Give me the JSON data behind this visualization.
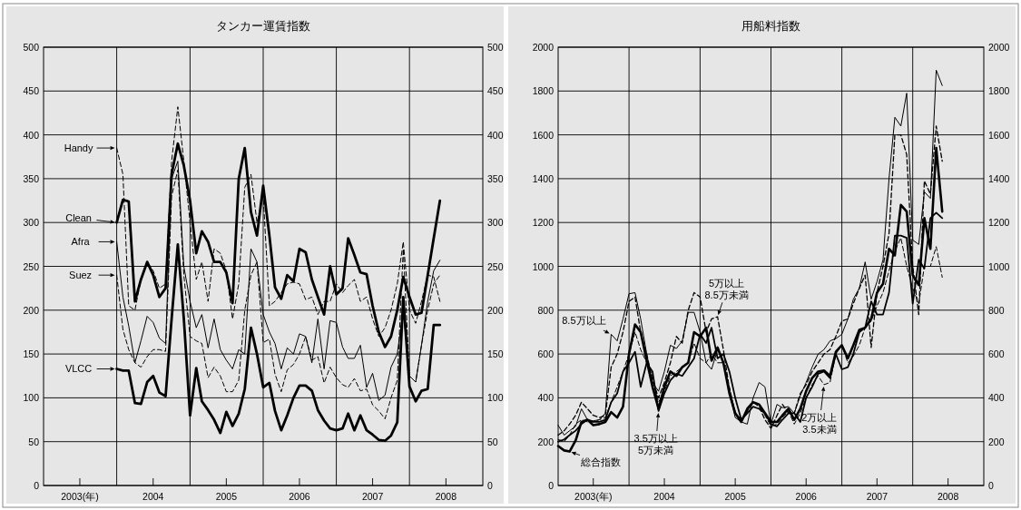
{
  "chart_data": [
    {
      "type": "line",
      "title": "タンカー運賃指数",
      "x": [
        "2004-01",
        "2004-02",
        "2004-03",
        "2004-04",
        "2004-05",
        "2004-06",
        "2004-07",
        "2004-08",
        "2004-09",
        "2004-10",
        "2004-11",
        "2004-12",
        "2005-01",
        "2005-02",
        "2005-03",
        "2005-04",
        "2005-05",
        "2005-06",
        "2005-07",
        "2005-08",
        "2005-09",
        "2005-10",
        "2005-11",
        "2005-12",
        "2006-01",
        "2006-02",
        "2006-03",
        "2006-04",
        "2006-05",
        "2006-06",
        "2006-07",
        "2006-08",
        "2006-09",
        "2006-10",
        "2006-11",
        "2006-12",
        "2007-01",
        "2007-02",
        "2007-03",
        "2007-04",
        "2007-05",
        "2007-06",
        "2007-07",
        "2007-08",
        "2007-09",
        "2007-10",
        "2007-11",
        "2007-12",
        "2008-01",
        "2008-02",
        "2008-03",
        "2008-04",
        "2008-05",
        "2008-06"
      ],
      "xlim": [
        "2003-01",
        "2009-01"
      ],
      "xticks": [
        {
          "value": "2003-07",
          "label": "2003(年)"
        },
        {
          "value": "2004-01",
          "label": null
        },
        {
          "value": "2004-07",
          "label": "2004"
        },
        {
          "value": "2005-01",
          "label": null
        },
        {
          "value": "2005-07",
          "label": "2005"
        },
        {
          "value": "2006-01",
          "label": null
        },
        {
          "value": "2006-07",
          "label": "2006"
        },
        {
          "value": "2007-01",
          "label": null
        },
        {
          "value": "2007-07",
          "label": "2007"
        },
        {
          "value": "2008-01",
          "label": null
        },
        {
          "value": "2008-07",
          "label": "2008"
        }
      ],
      "ylim": [
        0,
        500
      ],
      "yticks": [
        0,
        50,
        100,
        150,
        200,
        250,
        300,
        350,
        400,
        450,
        500
      ],
      "y2lim": [
        0,
        500
      ],
      "y2ticks": [
        0,
        50,
        100,
        150,
        200,
        250,
        300,
        350,
        400,
        450,
        500
      ],
      "grid": true,
      "series": [
        {
          "color": "#000000",
          "line_style": "dashed",
          "values": [
            385,
            355,
            205,
            200,
            235,
            255,
            245,
            225,
            230,
            370,
            432,
            370,
            300,
            235,
            255,
            210,
            270,
            265,
            245,
            190,
            230,
            340,
            355,
            300,
            330,
            205,
            210,
            220,
            230,
            232,
            230,
            212,
            215,
            195,
            210,
            210,
            230,
            220,
            228,
            235,
            210,
            215,
            190,
            170,
            180,
            200,
            230,
            278,
            200,
            185,
            210,
            240,
            238,
            210
          ]
        },
        {
          "color": "#000000",
          "line_style": "solid",
          "values": [
            300,
            326,
            324,
            210,
            235,
            255,
            240,
            215,
            225,
            355,
            390,
            365,
            325,
            265,
            290,
            278,
            255,
            255,
            243,
            208,
            350,
            385,
            312,
            285,
            342,
            285,
            226,
            213,
            240,
            233,
            270,
            266,
            235,
            215,
            195,
            250,
            218,
            225,
            282,
            263,
            243,
            241,
            205,
            175,
            158,
            170,
            200,
            238,
            215,
            195,
            197,
            240,
            282,
            325
          ]
        },
        {
          "color": "#000000",
          "line_style": "solid",
          "values": [
            278,
            215,
            182,
            140,
            165,
            193,
            186,
            168,
            162,
            350,
            370,
            250,
            210,
            180,
            195,
            157,
            190,
            155,
            143,
            133,
            155,
            150,
            270,
            255,
            195,
            175,
            162,
            133,
            157,
            150,
            173,
            170,
            140,
            190,
            133,
            188,
            186,
            158,
            145,
            145,
            160,
            112,
            128,
            97,
            103,
            135,
            150,
            200,
            125,
            118,
            160,
            210,
            245,
            257
          ]
        },
        {
          "color": "#000000",
          "line_style": "dashed",
          "values": [
            240,
            178,
            155,
            140,
            135,
            147,
            155,
            155,
            153,
            330,
            360,
            240,
            170,
            165,
            162,
            123,
            135,
            125,
            107,
            107,
            120,
            200,
            240,
            255,
            163,
            167,
            127,
            107,
            132,
            138,
            150,
            170,
            143,
            147,
            117,
            135,
            123,
            115,
            112,
            122,
            108,
            110,
            92,
            85,
            76,
            100,
            120,
            270,
            125,
            118,
            160,
            200,
            230,
            240
          ]
        },
        {
          "color": "#000000",
          "line_style": "solid",
          "values": [
            133,
            131,
            131,
            94,
            93,
            118,
            125,
            106,
            102,
            190,
            275,
            190,
            80,
            134,
            96,
            86,
            75,
            60,
            84,
            68,
            82,
            110,
            180,
            150,
            112,
            117,
            85,
            63,
            80,
            100,
            114,
            114,
            108,
            86,
            74,
            65,
            63,
            65,
            82,
            63,
            80,
            63,
            58,
            52,
            51,
            57,
            72,
            215,
            113,
            96,
            108,
            110,
            183,
            183
          ]
        }
      ],
      "annotations": [
        {
          "text": "Handy",
          "x": "2004-01",
          "y": 385
        },
        {
          "text": "Clean",
          "x": "2004-01",
          "y": 300
        },
        {
          "text": "Afra",
          "x": "2004-01",
          "y": 278
        },
        {
          "text": "Suez",
          "x": "2004-01",
          "y": 240
        },
        {
          "text": "VLCC",
          "x": "2004-01",
          "y": 133
        }
      ]
    },
    {
      "type": "line",
      "title": "用船料指数",
      "x": [
        "2003-01",
        "2003-02",
        "2003-03",
        "2003-04",
        "2003-05",
        "2003-06",
        "2003-07",
        "2003-08",
        "2003-09",
        "2003-10",
        "2003-11",
        "2003-12",
        "2004-01",
        "2004-02",
        "2004-03",
        "2004-04",
        "2004-05",
        "2004-06",
        "2004-07",
        "2004-08",
        "2004-09",
        "2004-10",
        "2004-11",
        "2004-12",
        "2005-01",
        "2005-02",
        "2005-03",
        "2005-04",
        "2005-05",
        "2005-06",
        "2005-07",
        "2005-08",
        "2005-09",
        "2005-10",
        "2005-11",
        "2005-12",
        "2006-01",
        "2006-02",
        "2006-03",
        "2006-04",
        "2006-05",
        "2006-06",
        "2006-07",
        "2006-08",
        "2006-09",
        "2006-10",
        "2006-11",
        "2006-12",
        "2007-01",
        "2007-02",
        "2007-03",
        "2007-04",
        "2007-05",
        "2007-06",
        "2007-07",
        "2007-08",
        "2007-09",
        "2007-10",
        "2007-11",
        "2007-12",
        "2008-01",
        "2008-02",
        "2008-03",
        "2008-04",
        "2008-05",
        "2008-06"
      ],
      "xlim": [
        "2003-01",
        "2009-01"
      ],
      "xticks": [
        {
          "value": "2003-07",
          "label": "2003(年)"
        },
        {
          "value": "2004-01",
          "label": null
        },
        {
          "value": "2004-07",
          "label": "2004"
        },
        {
          "value": "2005-01",
          "label": null
        },
        {
          "value": "2005-07",
          "label": "2005"
        },
        {
          "value": "2006-01",
          "label": null
        },
        {
          "value": "2006-07",
          "label": "2006"
        },
        {
          "value": "2007-01",
          "label": null
        },
        {
          "value": "2007-07",
          "label": "2007"
        },
        {
          "value": "2008-01",
          "label": null
        },
        {
          "value": "2008-07",
          "label": "2008"
        }
      ],
      "ylim": [
        0,
        2000
      ],
      "yticks": [
        0,
        200,
        400,
        600,
        800,
        1000,
        1200,
        1400,
        1600,
        1800,
        2000
      ],
      "y2lim": [
        0,
        2000
      ],
      "y2ticks": [
        0,
        200,
        400,
        600,
        800,
        1000,
        1200,
        1400,
        1600,
        1800,
        2000
      ],
      "grid": true,
      "series": [
        {
          "color": "#000000",
          "line_style": "solid",
          "values": [
            180,
            160,
            155,
            205,
            290,
            300,
            275,
            280,
            290,
            335,
            310,
            360,
            600,
            735,
            700,
            570,
            450,
            350,
            450,
            520,
            500,
            540,
            560,
            700,
            680,
            720,
            570,
            630,
            560,
            420,
            330,
            290,
            350,
            380,
            370,
            330,
            290,
            290,
            320,
            350,
            300,
            350,
            430,
            490,
            520,
            525,
            500,
            610,
            640,
            580,
            640,
            710,
            720,
            760,
            880,
            920,
            1080,
            1050,
            1280,
            1250,
            960,
            915,
            1220,
            1080,
            1540,
            1250
          ]
        },
        {
          "color": "#000000",
          "line_style": "solid",
          "values": [
            275,
            230,
            250,
            270,
            350,
            300,
            295,
            300,
            330,
            690,
            660,
            760,
            875,
            880,
            760,
            600,
            470,
            430,
            520,
            640,
            625,
            660,
            790,
            790,
            700,
            560,
            530,
            620,
            560,
            420,
            310,
            290,
            280,
            400,
            470,
            450,
            280,
            370,
            355,
            360,
            330,
            410,
            470,
            540,
            600,
            620,
            660,
            670,
            690,
            760,
            850,
            900,
            1020,
            850,
            930,
            1030,
            1400,
            1680,
            1640,
            1790,
            1120,
            1100,
            1340,
            1310,
            1895,
            1825
          ]
        },
        {
          "color": "#000000",
          "line_style": "dashed",
          "values": [
            230,
            250,
            280,
            320,
            380,
            350,
            320,
            310,
            320,
            540,
            600,
            700,
            840,
            860,
            700,
            600,
            480,
            400,
            470,
            560,
            680,
            650,
            800,
            880,
            860,
            700,
            760,
            770,
            620,
            440,
            330,
            300,
            340,
            380,
            360,
            300,
            260,
            320,
            370,
            330,
            330,
            420,
            460,
            520,
            560,
            600,
            620,
            680,
            750,
            760,
            830,
            900,
            960,
            630,
            880,
            1000,
            1150,
            1600,
            1600,
            1510,
            1000,
            780,
            1390,
            1330,
            1640,
            1480
          ]
        },
        {
          "color": "#000000",
          "line_style": "solid",
          "values": [
            200,
            210,
            230,
            250,
            280,
            300,
            290,
            290,
            300,
            380,
            420,
            520,
            560,
            610,
            450,
            560,
            520,
            340,
            420,
            480,
            510,
            500,
            540,
            580,
            690,
            650,
            720,
            580,
            600,
            520,
            400,
            300,
            330,
            360,
            350,
            330,
            280,
            270,
            300,
            330,
            330,
            290,
            400,
            450,
            510,
            520,
            490,
            600,
            530,
            540,
            600,
            700,
            720,
            840,
            780,
            780,
            880,
            1140,
            1140,
            1130,
            830,
            1030,
            990,
            1220,
            1245,
            1220
          ]
        },
        {
          "color": "#000000",
          "line_style": "dashed",
          "values": [
            210,
            200,
            230,
            280,
            300,
            290,
            290,
            300,
            310,
            380,
            450,
            520,
            600,
            700,
            620,
            560,
            500,
            380,
            430,
            500,
            520,
            540,
            560,
            650,
            580,
            560,
            600,
            560,
            560,
            450,
            330,
            290,
            340,
            380,
            370,
            320,
            270,
            280,
            310,
            340,
            280,
            330,
            400,
            460,
            500,
            460,
            470,
            600,
            640,
            560,
            590,
            640,
            720,
            750,
            820,
            880,
            980,
            1070,
            1130,
            1000,
            900,
            830,
            1000,
            1000,
            1090,
            950
          ]
        }
      ],
      "annotations": [
        {
          "text": "総合指数",
          "x": "2003-03",
          "y": 155
        },
        {
          "text": "8.5万以上",
          "x": "2003-10",
          "y": 690
        },
        {
          "text": "5万以上\n8.5万未満",
          "x": "2005-04",
          "y": 770
        },
        {
          "text": "3.5万以上\n5万未満",
          "x": "2004-06",
          "y": 340
        },
        {
          "text": "2万以上\n3.5未満",
          "x": "2006-10",
          "y": 460
        }
      ]
    }
  ]
}
